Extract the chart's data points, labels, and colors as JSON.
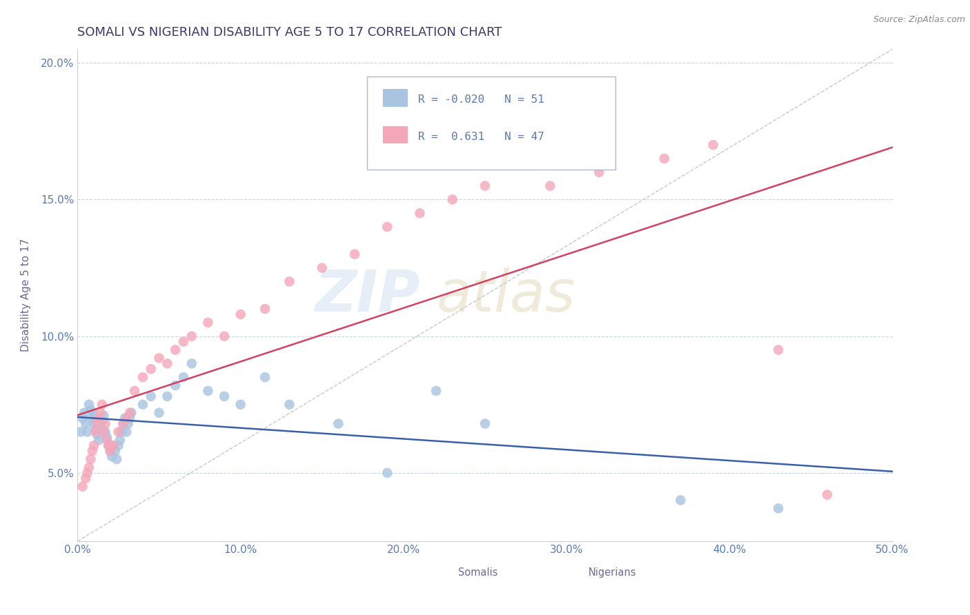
{
  "title": "SOMALI VS NIGERIAN DISABILITY AGE 5 TO 17 CORRELATION CHART",
  "source": "Source: ZipAtlas.com",
  "ylabel": "Disability Age 5 to 17",
  "xlim": [
    0.0,
    0.5
  ],
  "ylim": [
    0.025,
    0.205
  ],
  "yticks": [
    0.05,
    0.1,
    0.15,
    0.2
  ],
  "ytick_labels": [
    "5.0%",
    "10.0%",
    "15.0%",
    "20.0%"
  ],
  "xticks": [
    0.0,
    0.1,
    0.2,
    0.3,
    0.4,
    0.5
  ],
  "xtick_labels": [
    "0.0%",
    "10.0%",
    "20.0%",
    "30.0%",
    "40.0%",
    "50.0%"
  ],
  "somali_R": -0.02,
  "somali_N": 51,
  "nigerian_R": 0.631,
  "nigerian_N": 47,
  "somali_color": "#a8c4e0",
  "nigerian_color": "#f4a7b9",
  "somali_line_color": "#3a5faa",
  "nigerian_line_color": "#d44060",
  "diagonal_color": "#c0c0c0",
  "title_color": "#3a3a6e",
  "axis_label_color": "#6a6a9a",
  "tick_color": "#5a7ab5",
  "background_color": "#ffffff",
  "grid_color": "#c8d4e8",
  "legend_edge_color": "#b0b8d0",
  "somali_x": [
    0.002,
    0.003,
    0.004,
    0.005,
    0.006,
    0.007,
    0.008,
    0.009,
    0.01,
    0.01,
    0.011,
    0.012,
    0.013,
    0.014,
    0.015,
    0.016,
    0.017,
    0.018,
    0.019,
    0.02,
    0.021,
    0.022,
    0.023,
    0.024,
    0.025,
    0.026,
    0.027,
    0.028,
    0.029,
    0.03,
    0.031,
    0.032,
    0.033,
    0.04,
    0.045,
    0.05,
    0.055,
    0.06,
    0.065,
    0.07,
    0.08,
    0.09,
    0.1,
    0.115,
    0.13,
    0.16,
    0.19,
    0.22,
    0.25,
    0.37,
    0.43
  ],
  "somali_y": [
    0.065,
    0.07,
    0.072,
    0.068,
    0.065,
    0.075,
    0.073,
    0.07,
    0.068,
    0.072,
    0.066,
    0.064,
    0.062,
    0.067,
    0.069,
    0.071,
    0.065,
    0.063,
    0.06,
    0.058,
    0.056,
    0.06,
    0.058,
    0.055,
    0.06,
    0.062,
    0.065,
    0.068,
    0.07,
    0.065,
    0.068,
    0.07,
    0.072,
    0.075,
    0.078,
    0.072,
    0.078,
    0.082,
    0.085,
    0.09,
    0.08,
    0.078,
    0.075,
    0.085,
    0.075,
    0.068,
    0.05,
    0.08,
    0.068,
    0.04,
    0.037
  ],
  "nigerian_x": [
    0.003,
    0.005,
    0.006,
    0.007,
    0.008,
    0.009,
    0.01,
    0.011,
    0.012,
    0.013,
    0.014,
    0.015,
    0.016,
    0.017,
    0.018,
    0.019,
    0.02,
    0.022,
    0.025,
    0.028,
    0.03,
    0.032,
    0.035,
    0.04,
    0.045,
    0.05,
    0.055,
    0.06,
    0.065,
    0.07,
    0.08,
    0.09,
    0.1,
    0.115,
    0.13,
    0.15,
    0.17,
    0.19,
    0.21,
    0.23,
    0.25,
    0.29,
    0.32,
    0.36,
    0.39,
    0.43,
    0.46
  ],
  "nigerian_y": [
    0.045,
    0.048,
    0.05,
    0.052,
    0.055,
    0.058,
    0.06,
    0.065,
    0.068,
    0.07,
    0.072,
    0.075,
    0.065,
    0.068,
    0.062,
    0.06,
    0.058,
    0.06,
    0.065,
    0.068,
    0.07,
    0.072,
    0.08,
    0.085,
    0.088,
    0.092,
    0.09,
    0.095,
    0.098,
    0.1,
    0.105,
    0.1,
    0.108,
    0.11,
    0.12,
    0.125,
    0.13,
    0.14,
    0.145,
    0.15,
    0.155,
    0.155,
    0.16,
    0.165,
    0.17,
    0.095,
    0.042
  ]
}
